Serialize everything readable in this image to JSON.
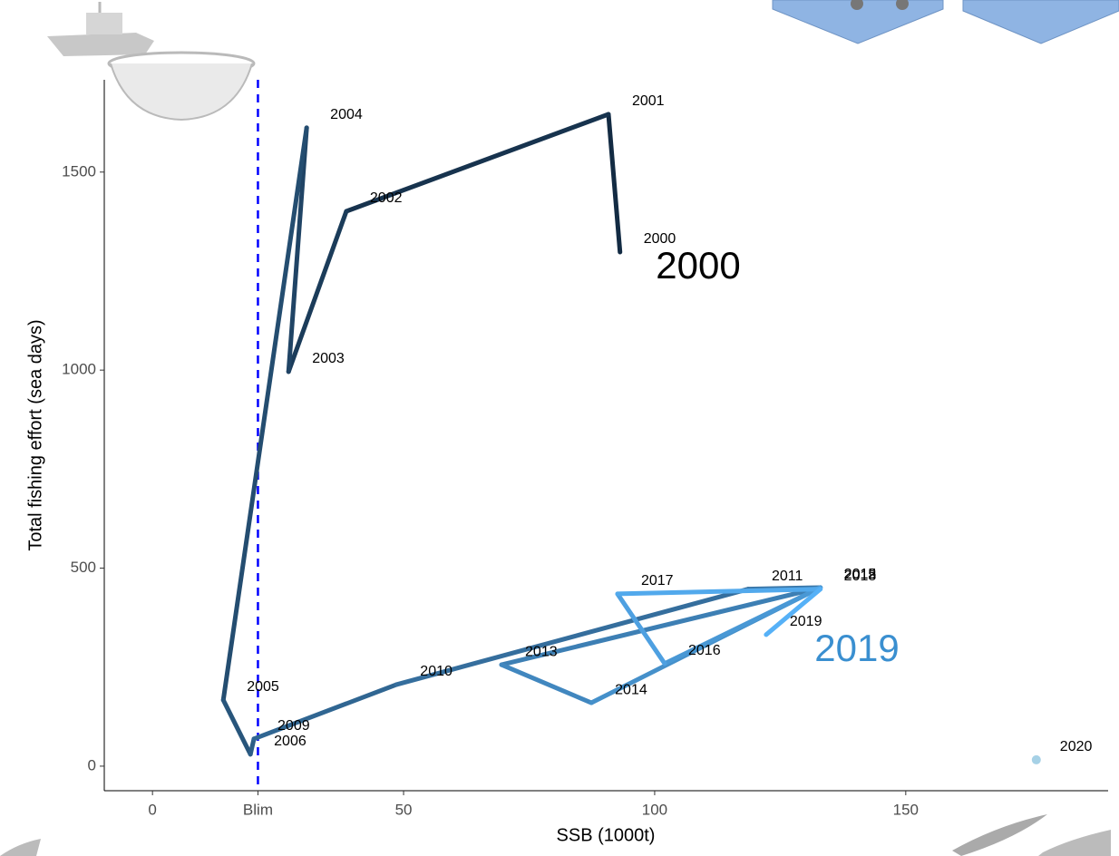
{
  "chart_data": {
    "type": "path",
    "x_label": "SSB (1000t)",
    "y_label": "Total fishing effort (sea days)",
    "xlim": [
      -9.6,
      190.3
    ],
    "ylim": [
      -62,
      1733
    ],
    "xticks": [
      0,
      {
        "value": 21,
        "label": "Blim"
      },
      50,
      100,
      150
    ],
    "yticks": [
      0,
      500,
      1000,
      1500
    ],
    "reference_line_x": 21,
    "reference_color": "#0000ff",
    "color_low": "#132b43",
    "color_high": "#56b1f7",
    "series": [
      {
        "labels": [
          "2000",
          "2001",
          "2002",
          "2003",
          "2004",
          "2005",
          "2006",
          "2009",
          "2010",
          "2011",
          "2012",
          "2013",
          "2014",
          "2015",
          "2016",
          "2017",
          "2018",
          "2019"
        ],
        "x": [
          93.1,
          90.8,
          38.6,
          27.1,
          30.7,
          14.1,
          19.5,
          20.2,
          48.6,
          118.6,
          133,
          69.5,
          87.4,
          133,
          102,
          92.6,
          133,
          122.2
        ],
        "values": [
          1298,
          1646,
          1401,
          996,
          1612,
          167,
          30,
          69,
          206,
          447,
          451,
          256,
          160,
          451,
          259,
          435,
          447,
          332
        ]
      },
      {
        "labels": [
          "2020"
        ],
        "x": [
          176
        ],
        "values": [
          16
        ],
        "color": "#a6d1e6"
      }
    ],
    "annotations": [
      {
        "text": "2000",
        "color": "#000000"
      },
      {
        "text": "2019",
        "color": "#3a8fd0"
      }
    ]
  }
}
